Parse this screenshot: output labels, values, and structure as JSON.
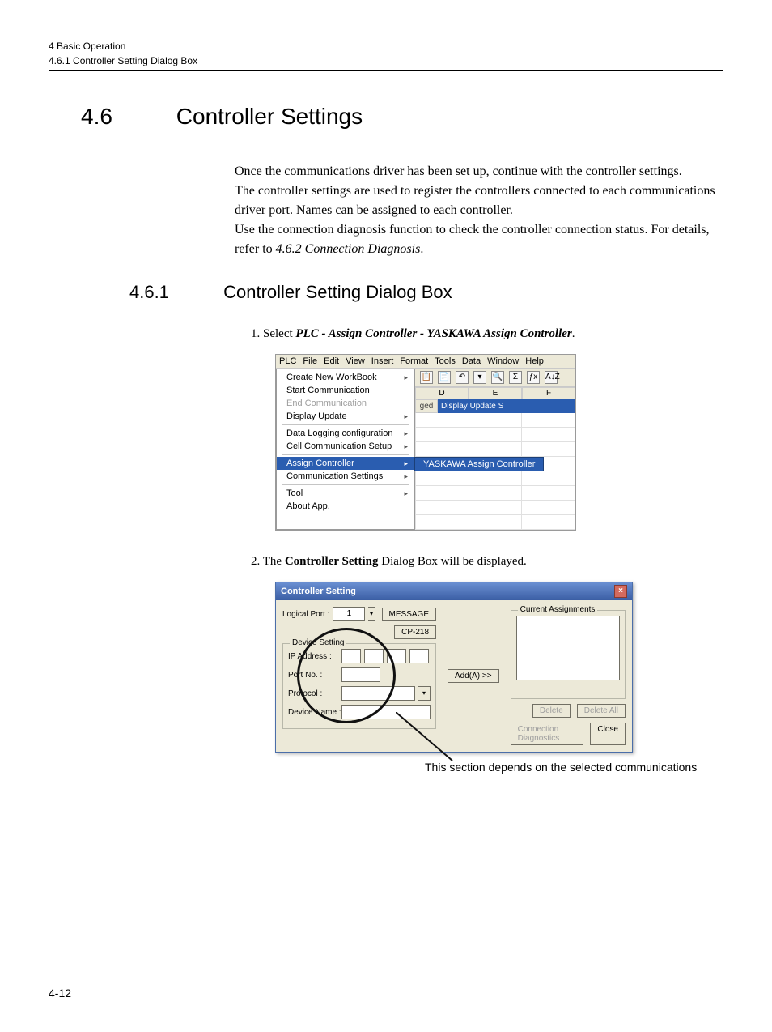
{
  "header": {
    "chapter": "4  Basic Operation",
    "sub": "4.6.1  Controller Setting Dialog Box"
  },
  "section": {
    "num": "4.6",
    "title": "Controller Settings"
  },
  "intro": {
    "p1": "Once the communications driver has been set up, continue with the controller settings.",
    "p2": "The controller settings are used to register the controllers connected to each communications driver port. Names can be assigned to each controller.",
    "p3a": "Use the connection diagnosis function to check the controller connection status. For details, refer to ",
    "p3_ref": "4.6.2  Connection Diagnosis",
    "p3b": "."
  },
  "subsection": {
    "num": "4.6.1",
    "title": "Controller Setting Dialog Box"
  },
  "steps": {
    "s1_prefix": "1.  Select ",
    "s1_bold": "PLC - Assign Controller - YASKAWA Assign Controller",
    "s1_suffix": ".",
    "s2_prefix": "2.  The ",
    "s2_bold": "Controller Setting",
    "s2_suffix": " Dialog Box will be displayed."
  },
  "menu_mock": {
    "menubar": [
      "PLC",
      "File",
      "Edit",
      "View",
      "Insert",
      "Format",
      "Tools",
      "Data",
      "Window",
      "Help"
    ],
    "menubar_underline_idx": [
      0,
      0,
      0,
      0,
      0,
      2,
      0,
      0,
      0,
      0
    ],
    "items": [
      {
        "label": "Create New WorkBook",
        "arrow": true,
        "disabled": false
      },
      {
        "label": "Start Communication",
        "arrow": false,
        "disabled": false
      },
      {
        "label": "End Communication",
        "arrow": false,
        "disabled": true
      },
      {
        "label": "Display Update",
        "arrow": true,
        "disabled": false
      },
      {
        "divider": true
      },
      {
        "label": "Data Logging configuration",
        "arrow": true,
        "disabled": false
      },
      {
        "label": "Cell Communication Setup",
        "arrow": true,
        "disabled": false
      },
      {
        "divider": true
      },
      {
        "label": "Assign Controller",
        "arrow": true,
        "disabled": false,
        "highlight": true,
        "submenu": "YASKAWA Assign Controller"
      },
      {
        "label": "Communication Settings",
        "arrow": true,
        "disabled": false
      },
      {
        "divider": true
      },
      {
        "label": "Tool",
        "arrow": true,
        "disabled": false
      },
      {
        "label": "About App.",
        "arrow": false,
        "disabled": false
      }
    ],
    "sheet_cols": [
      "D",
      "E",
      "F"
    ],
    "sheet_row1_left": "ged",
    "sheet_row1_right": "Display Update S",
    "toolbar_glyphs": [
      "📋",
      "📄",
      "↶",
      "▾",
      "🔍",
      "Σ",
      "ƒx",
      "A↓Z"
    ]
  },
  "dialog": {
    "title": "Controller Setting",
    "logical_port_label": "Logical Port :",
    "logical_port_value": "1",
    "btn_message": "MESSAGE",
    "btn_cp218": "CP-218",
    "fieldset_device": "Device Setting",
    "ip_label": "IP Address :",
    "portno_label": "Port No. :",
    "protocol_label": "Protocol :",
    "device_name_label": "Device Name :",
    "btn_add": "Add(A) >>",
    "assignments_legend": "Current Assignments",
    "btn_delete": "Delete",
    "btn_delete_all": "Delete All",
    "btn_conn_diag": "Connection Diagnostics",
    "btn_close": "Close"
  },
  "annotation": "This section depends on the selected communications",
  "page_num": "4-12",
  "colors": {
    "highlight_blue": "#2a5db0",
    "dialog_grad_top": "#6a8fd2",
    "dialog_grad_bot": "#3b5ea4",
    "win_bg": "#ece9d8"
  }
}
